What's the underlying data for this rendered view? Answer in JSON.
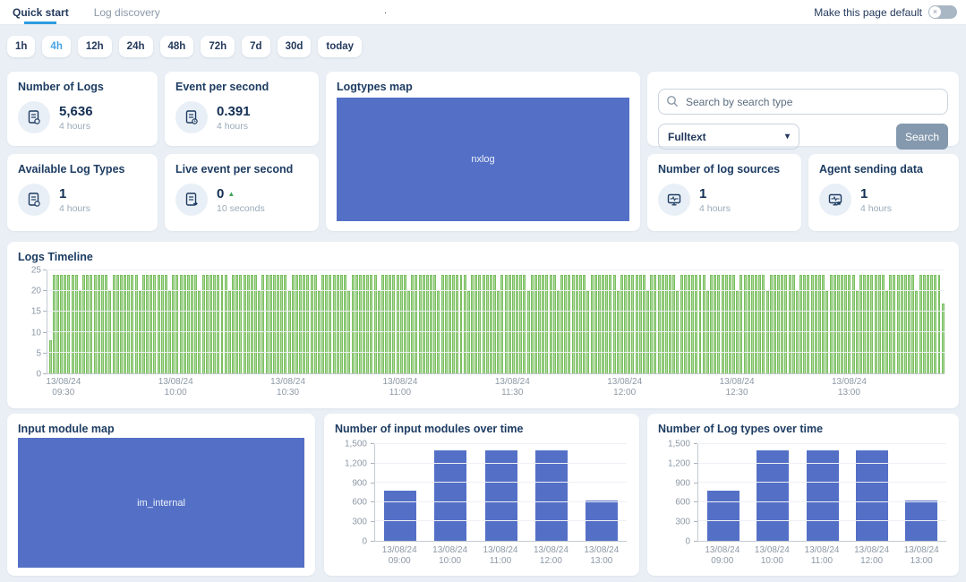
{
  "topbar": {
    "tabs": [
      {
        "label": "Quick start",
        "active": true
      },
      {
        "label": "Log discovery",
        "active": false
      }
    ],
    "artifact": ".",
    "make_default_label": "Make this page default",
    "toggle_state": "off",
    "toggle_glyph": "×"
  },
  "time_ranges": {
    "options": [
      "1h",
      "4h",
      "12h",
      "24h",
      "48h",
      "72h",
      "7d",
      "30d",
      "today"
    ],
    "selected": "4h"
  },
  "stats": [
    {
      "title": "Number of Logs",
      "value": "5,636",
      "period": "4 hours",
      "icon": "log-file-icon"
    },
    {
      "title": "Event per second",
      "value": "0.391",
      "period": "4 hours",
      "icon": "log-file-clock-icon"
    },
    {
      "title": "Available Log Types",
      "value": "1",
      "period": "4 hours",
      "icon": "log-file-search-icon"
    },
    {
      "title": "Live event per second",
      "value": "0",
      "trend": "▲",
      "period": "10 seconds",
      "icon": "log-file-arrow-icon"
    },
    {
      "title": "Number of log sources",
      "value": "1",
      "period": "4 hours",
      "icon": "monitor-pulse-icon"
    },
    {
      "title": "Agent sending data",
      "value": "1",
      "period": "4 hours",
      "icon": "monitor-pulse-icon"
    }
  ],
  "search": {
    "placeholder": "Search by search type",
    "type_selected": "Fulltext",
    "button_label": "Search"
  },
  "colors": {
    "accent_blue": "#2d9ce0",
    "chart_blue": "#5470c6",
    "chart_green": "#91cc75",
    "navy_text": "#1d3c62",
    "muted_text": "#9aaaba",
    "page_bg": "#e9eff5",
    "search_button_bg": "#8599ae"
  },
  "chart_data": [
    {
      "id": "logtypes_map",
      "type": "treemap",
      "title": "Logtypes map",
      "items": [
        {
          "label": "nxlog",
          "value": 1,
          "color": "#5470c6"
        }
      ]
    },
    {
      "id": "logs_timeline",
      "type": "bar",
      "title": "Logs Timeline",
      "color": "#91cc75",
      "ylim": [
        0,
        25
      ],
      "yticks": [
        0,
        5,
        10,
        15,
        20,
        25
      ],
      "grid": true,
      "x_tick_labels": [
        {
          "date": "13/08/24",
          "time": "09:30"
        },
        {
          "date": "13/08/24",
          "time": "10:00"
        },
        {
          "date": "13/08/24",
          "time": "10:30"
        },
        {
          "date": "13/08/24",
          "time": "11:00"
        },
        {
          "date": "13/08/24",
          "time": "11:30"
        },
        {
          "date": "13/08/24",
          "time": "12:00"
        },
        {
          "date": "13/08/24",
          "time": "12:30"
        },
        {
          "date": "13/08/24",
          "time": "13:00"
        }
      ],
      "x_tick_bar_indices": [
        4,
        34,
        64,
        94,
        124,
        154,
        184,
        214
      ],
      "values": [
        8,
        24,
        24,
        24,
        24,
        24,
        24,
        24,
        20,
        24,
        24,
        24,
        24,
        24,
        24,
        24,
        20,
        24,
        24,
        24,
        24,
        24,
        24,
        24,
        20,
        24,
        24,
        24,
        24,
        24,
        24,
        24,
        20,
        24,
        24,
        24,
        24,
        24,
        24,
        24,
        20,
        24,
        24,
        24,
        24,
        24,
        24,
        24,
        20,
        24,
        24,
        24,
        24,
        24,
        24,
        24,
        20,
        24,
        24,
        24,
        24,
        24,
        24,
        24,
        20,
        24,
        24,
        24,
        24,
        24,
        24,
        24,
        20,
        24,
        24,
        24,
        24,
        24,
        24,
        24,
        20,
        24,
        24,
        24,
        24,
        24,
        24,
        24,
        20,
        24,
        24,
        24,
        24,
        24,
        24,
        24,
        20,
        24,
        24,
        24,
        24,
        24,
        24,
        24,
        20,
        24,
        24,
        24,
        24,
        24,
        24,
        24,
        20,
        24,
        24,
        24,
        24,
        24,
        24,
        24,
        20,
        24,
        24,
        24,
        24,
        24,
        24,
        24,
        20,
        24,
        24,
        24,
        24,
        24,
        24,
        24,
        20,
        24,
        24,
        24,
        24,
        24,
        24,
        24,
        20,
        24,
        24,
        24,
        24,
        24,
        24,
        24,
        20,
        24,
        24,
        24,
        24,
        24,
        24,
        24,
        20,
        24,
        24,
        24,
        24,
        24,
        24,
        24,
        20,
        24,
        24,
        24,
        24,
        24,
        24,
        24,
        20,
        24,
        24,
        24,
        24,
        24,
        24,
        24,
        20,
        24,
        24,
        24,
        24,
        24,
        24,
        24,
        20,
        24,
        24,
        24,
        24,
        24,
        24,
        24,
        20,
        24,
        24,
        24,
        24,
        24,
        24,
        24,
        20,
        24,
        24,
        24,
        24,
        24,
        24,
        24,
        20,
        24,
        24,
        24,
        24,
        24,
        24,
        24,
        20,
        24,
        24,
        24,
        24,
        24,
        24,
        24,
        20,
        24,
        24,
        24,
        24,
        24,
        24,
        17
      ]
    },
    {
      "id": "input_modules_over_time",
      "type": "bar",
      "title": "Number of input modules over time",
      "color": "#5470c6",
      "ylim": [
        0,
        1500
      ],
      "yticks": [
        0,
        300,
        600,
        900,
        1200,
        1500
      ],
      "ytick_labels": [
        "0",
        "300",
        "600",
        "900",
        "1,200",
        "1,500"
      ],
      "grid": true,
      "categories": [
        {
          "date": "13/08/24",
          "time": "09:00"
        },
        {
          "date": "13/08/24",
          "time": "10:00"
        },
        {
          "date": "13/08/24",
          "time": "11:00"
        },
        {
          "date": "13/08/24",
          "time": "12:00"
        },
        {
          "date": "13/08/24",
          "time": "13:00"
        }
      ],
      "values": [
        780,
        1400,
        1400,
        1400,
        630
      ]
    },
    {
      "id": "log_types_over_time",
      "type": "bar",
      "title": "Number of Log types over time",
      "color": "#5470c6",
      "ylim": [
        0,
        1500
      ],
      "yticks": [
        0,
        300,
        600,
        900,
        1200,
        1500
      ],
      "ytick_labels": [
        "0",
        "300",
        "600",
        "900",
        "1,200",
        "1,500"
      ],
      "grid": true,
      "categories": [
        {
          "date": "13/08/24",
          "time": "09:00"
        },
        {
          "date": "13/08/24",
          "time": "10:00"
        },
        {
          "date": "13/08/24",
          "time": "11:00"
        },
        {
          "date": "13/08/24",
          "time": "12:00"
        },
        {
          "date": "13/08/24",
          "time": "13:00"
        }
      ],
      "values": [
        780,
        1400,
        1400,
        1400,
        630
      ]
    },
    {
      "id": "input_module_map",
      "type": "treemap",
      "title": "Input module map",
      "items": [
        {
          "label": "im_internal",
          "value": 1,
          "color": "#5470c6"
        }
      ]
    }
  ]
}
